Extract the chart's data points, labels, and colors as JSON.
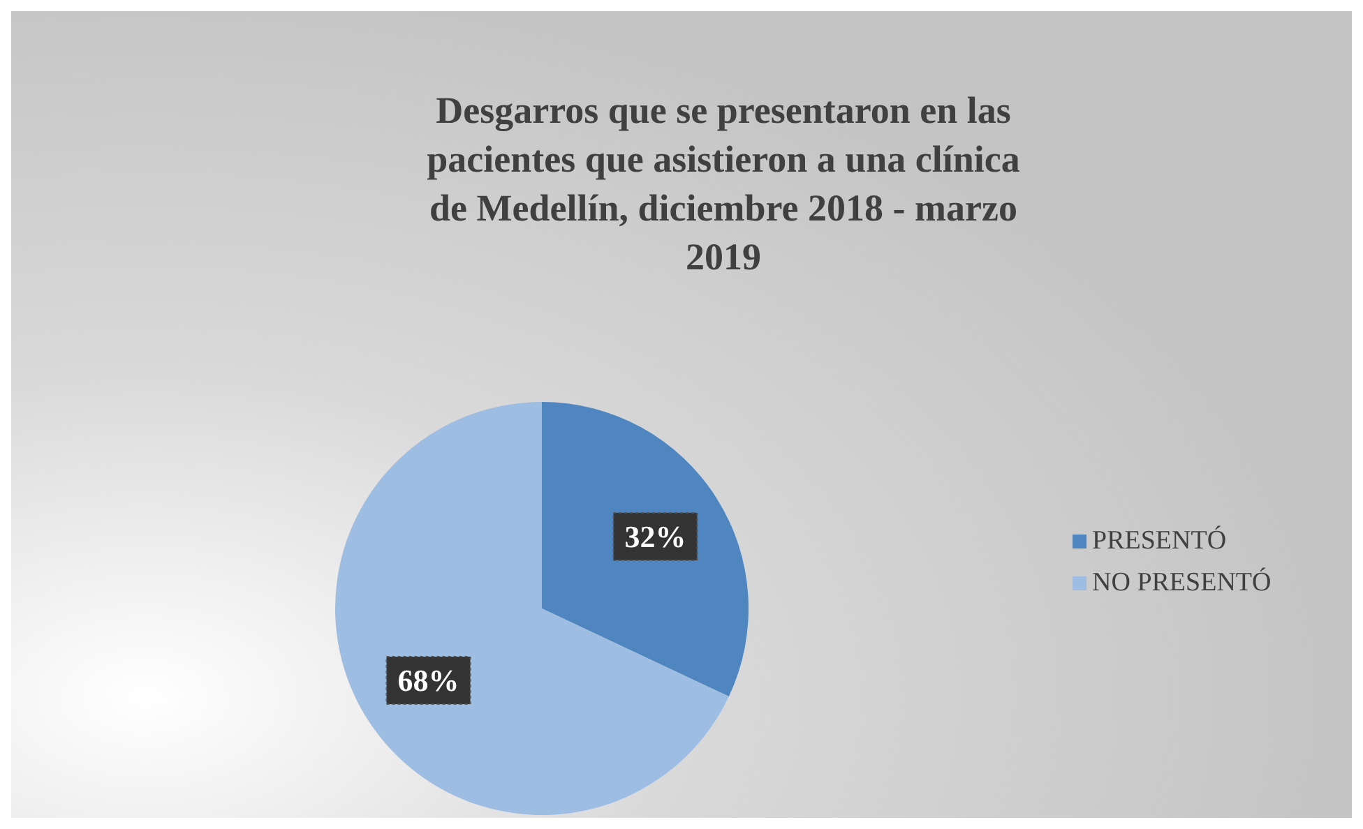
{
  "chart_data": {
    "type": "pie",
    "title": "Desgarros que se presentaron en las pacientes que asistieron a una clínica de Medellín, diciembre 2018 - marzo 2019",
    "categories": [
      "PRESENTÓ",
      "NO PRESENTÓ"
    ],
    "values": [
      32,
      68
    ],
    "colors": [
      "#4f86c0",
      "#9dbde3"
    ],
    "value_labels": [
      "32%",
      "68%"
    ],
    "legend": "right"
  }
}
